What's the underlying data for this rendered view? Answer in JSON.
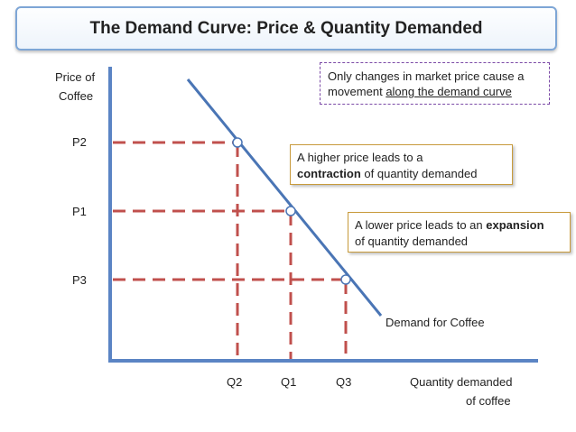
{
  "title": "The Demand Curve: Price & Quantity Demanded",
  "axes": {
    "y_label_line1": "Price of",
    "y_label_line2": "Coffee",
    "x_label_line1": "Quantity demanded",
    "x_label_line2": "of coffee"
  },
  "price_ticks": [
    "P2",
    "P1",
    "P3"
  ],
  "quantity_ticks": [
    "Q2",
    "Q1",
    "Q3"
  ],
  "curve_label": "Demand for Coffee",
  "notes": {
    "top": {
      "line1": "Only changes in market price cause a",
      "line2_prefix": "movement ",
      "line2_underlined": "along the demand curve"
    },
    "contraction": {
      "line1": "A higher price leads to a",
      "bold": "contraction",
      "rest": " of quantity demanded"
    },
    "expansion": {
      "line1_prefix": "A lower price leads to an ",
      "bold": "expansion",
      "line2": "of quantity demanded"
    }
  },
  "colors": {
    "axis": "#5b84c4",
    "curve": "#4a75b5",
    "guide": "#c0504d",
    "note_border": "#c89b3c",
    "top_note_border": "#7b4aa6",
    "title_border": "#7ea6d6"
  }
}
